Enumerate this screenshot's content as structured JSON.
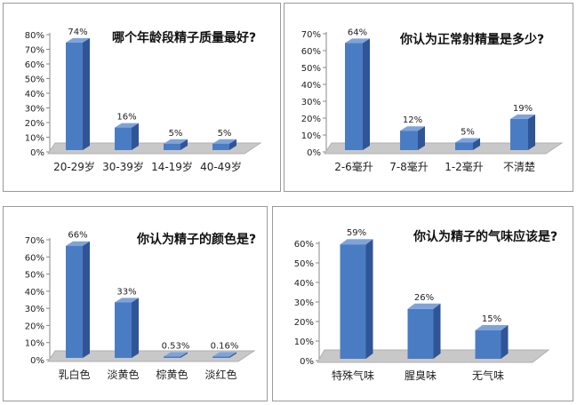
{
  "chart_data": [
    {
      "type": "bar",
      "title": "哪个年龄段精子质量最好?",
      "categories": [
        "20-29岁",
        "30-39岁",
        "14-19岁",
        "40-49岁"
      ],
      "values": [
        74,
        16,
        5,
        5
      ],
      "data_labels": [
        "74%",
        "16%",
        "5%",
        "5%"
      ],
      "yticks": [
        "0%",
        "10%",
        "20%",
        "30%",
        "40%",
        "50%",
        "60%",
        "70%",
        "80%"
      ],
      "ylim": [
        0,
        80
      ]
    },
    {
      "type": "bar",
      "title": "你认为正常射精量是多少?",
      "categories": [
        "2-6毫升",
        "7-8毫升",
        "1-2毫升",
        "不清楚"
      ],
      "values": [
        64,
        12,
        5,
        19
      ],
      "data_labels": [
        "64%",
        "12%",
        "5%",
        "19%"
      ],
      "yticks": [
        "0%",
        "10%",
        "20%",
        "30%",
        "40%",
        "50%",
        "60%",
        "70%"
      ],
      "ylim": [
        0,
        70
      ]
    },
    {
      "type": "bar",
      "title": "你认为精子的颜色是?",
      "categories": [
        "乳白色",
        "淡黄色",
        "棕黄色",
        "淡红色"
      ],
      "values": [
        66,
        33,
        0.53,
        0.16
      ],
      "data_labels": [
        "66%",
        "33%",
        "0.53%",
        "0.16%"
      ],
      "yticks": [
        "0%",
        "10%",
        "20%",
        "30%",
        "40%",
        "50%",
        "60%",
        "70%"
      ],
      "ylim": [
        0,
        70
      ]
    },
    {
      "type": "bar",
      "title": "你认为精子的气味应该是?",
      "categories": [
        "特殊气味",
        "腥臭味",
        "无气味"
      ],
      "values": [
        59,
        26,
        15
      ],
      "data_labels": [
        "59%",
        "26%",
        "15%"
      ],
      "yticks": [
        "0%",
        "10%",
        "20%",
        "30%",
        "40%",
        "50%",
        "60%"
      ],
      "ylim": [
        0,
        60
      ]
    }
  ]
}
